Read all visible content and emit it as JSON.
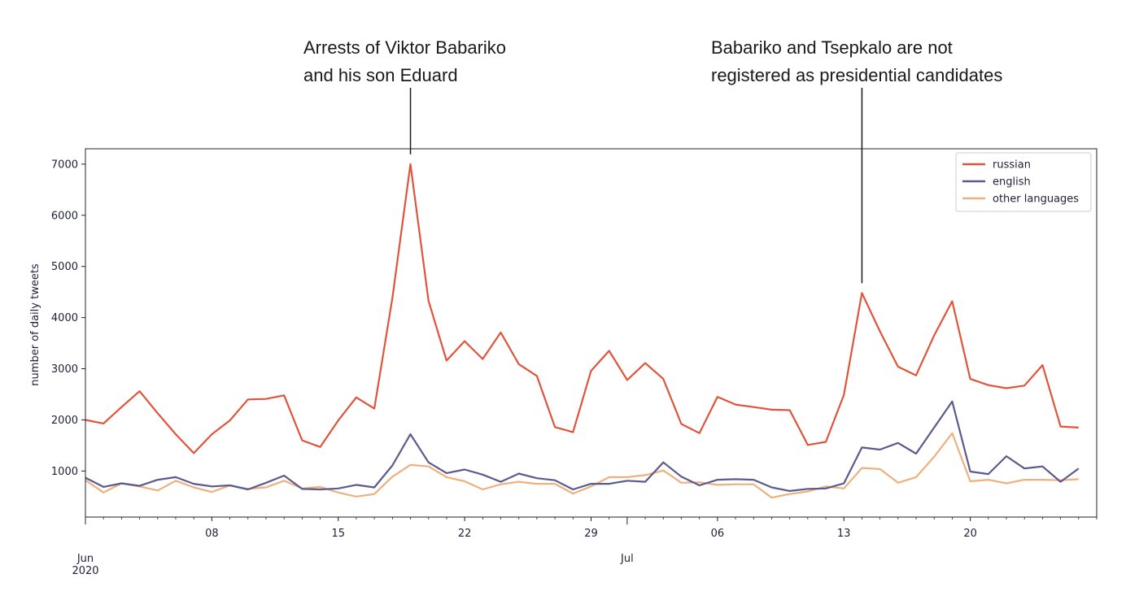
{
  "annotations": [
    {
      "lines": [
        "Arrests of Viktor Babariko",
        "and his son Eduard"
      ],
      "date": "2020-06-19"
    },
    {
      "lines": [
        "Babariko and Tsepkalo are not",
        "registered as presidential candidates"
      ],
      "date": "2020-07-14"
    }
  ],
  "chart_data": {
    "type": "line",
    "title": "",
    "xlabel": "",
    "ylabel": "number of daily tweets",
    "x_range": [
      "2020-06-01",
      "2020-07-27"
    ],
    "ylim": [
      100,
      7300
    ],
    "y_ticks": [
      1000,
      2000,
      3000,
      4000,
      5000,
      6000,
      7000
    ],
    "x_ticks": [
      {
        "date": "2020-06-01",
        "label": "Jun",
        "sublabel": "2020",
        "major": true
      },
      {
        "date": "2020-06-08",
        "label": "08"
      },
      {
        "date": "2020-06-15",
        "label": "15"
      },
      {
        "date": "2020-06-22",
        "label": "22"
      },
      {
        "date": "2020-06-29",
        "label": "29"
      },
      {
        "date": "2020-07-01",
        "label": "Jul",
        "major": true
      },
      {
        "date": "2020-07-06",
        "label": "06"
      },
      {
        "date": "2020-07-13",
        "label": "13"
      },
      {
        "date": "2020-07-20",
        "label": "20"
      }
    ],
    "grid": false,
    "legend_position": "top-right",
    "x_start": "2020-06-01",
    "series": [
      {
        "name": "russian",
        "color": "#e0543c",
        "values": [
          2000,
          1930,
          2250,
          2560,
          2130,
          1720,
          1350,
          1720,
          1990,
          2400,
          2410,
          2480,
          1600,
          1470,
          1990,
          2440,
          2220,
          4380,
          7000,
          4330,
          3160,
          3540,
          3190,
          3710,
          3090,
          2860,
          1860,
          1760,
          2960,
          3350,
          2780,
          3110,
          2800,
          1920,
          1740,
          2450,
          2300,
          2250,
          2200,
          2190,
          1510,
          1570,
          2490,
          4480,
          3730,
          3040,
          2870,
          3650,
          4320,
          2800,
          2680,
          2620,
          2670,
          3070,
          1870,
          1850
        ]
      },
      {
        "name": "english",
        "color": "#5a5a8c",
        "values": [
          870,
          690,
          760,
          710,
          830,
          880,
          750,
          700,
          720,
          640,
          770,
          910,
          650,
          640,
          660,
          730,
          680,
          1110,
          1720,
          1170,
          960,
          1030,
          930,
          790,
          950,
          860,
          820,
          640,
          750,
          750,
          810,
          790,
          1170,
          890,
          720,
          830,
          840,
          830,
          680,
          610,
          650,
          660,
          760,
          1460,
          1420,
          1550,
          1340,
          1850,
          2360,
          990,
          940,
          1290,
          1050,
          1090,
          790,
          1050
        ]
      },
      {
        "name": "other languages",
        "color": "#eeb07e",
        "values": [
          820,
          580,
          760,
          700,
          620,
          810,
          680,
          590,
          720,
          650,
          680,
          810,
          660,
          690,
          580,
          500,
          550,
          890,
          1120,
          1090,
          880,
          800,
          640,
          740,
          790,
          750,
          750,
          560,
          700,
          880,
          880,
          920,
          1010,
          770,
          780,
          730,
          740,
          740,
          480,
          550,
          600,
          700,
          660,
          1060,
          1040,
          770,
          880,
          1280,
          1740,
          800,
          830,
          760,
          830,
          830,
          820,
          840
        ]
      }
    ]
  }
}
